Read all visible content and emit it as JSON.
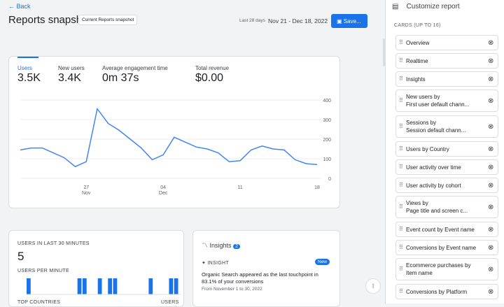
{
  "header": {
    "back": "Back",
    "title": "Reports snapshot",
    "chip": "Current Reports snapshot",
    "range_label": "Last 28 days",
    "range": "Nov 21 - Dec 18, 2022",
    "save": "Save..."
  },
  "overview": {
    "metrics": [
      {
        "label": "Users",
        "value": "3.5K"
      },
      {
        "label": "New users",
        "value": "3.4K"
      },
      {
        "label": "Average engagement time",
        "value": "0m 37s"
      },
      {
        "label": "Total revenue",
        "value": "$0.00"
      }
    ],
    "chart": {
      "type": "line",
      "color": "#4285f4",
      "ylim": [
        0,
        400
      ],
      "yticks": [
        0,
        100,
        200,
        300,
        400
      ],
      "categories": [
        null,
        null,
        null,
        null,
        null,
        null,
        {
          "day": "27",
          "month": "Nov"
        },
        null,
        null,
        null,
        null,
        null,
        null,
        {
          "day": "04",
          "month": "Dec"
        },
        null,
        null,
        null,
        null,
        null,
        null,
        {
          "day": "11"
        },
        null,
        null,
        null,
        null,
        null,
        null,
        {
          "day": "18"
        }
      ],
      "values": [
        145,
        155,
        155,
        130,
        105,
        60,
        85,
        355,
        280,
        245,
        200,
        155,
        95,
        120,
        210,
        185,
        160,
        150,
        130,
        85,
        90,
        145,
        165,
        150,
        145,
        95,
        75,
        70
      ]
    }
  },
  "realtime": {
    "title": "USERS IN LAST 30 MINUTES",
    "value": "5",
    "per_minute": "USERS PER MINUTE",
    "bars": [
      1,
      0,
      0,
      0,
      0,
      0,
      0,
      0,
      0,
      0,
      1,
      1,
      0,
      0,
      1,
      0,
      1,
      1,
      0,
      0,
      0,
      0,
      0,
      0,
      1,
      0,
      0,
      0,
      1,
      1
    ],
    "countries": "TOP COUNTRIES",
    "users": "USERS"
  },
  "insights": {
    "title": "Insights",
    "count": "2",
    "kind": "INSIGHT",
    "badge": "New",
    "text": "Organic Search appeared as the last touchpoint in 83.1% of your conversions",
    "date": "From November 1 to 30, 2022"
  },
  "panel": {
    "title": "Customize report",
    "section": "CARDS (UP TO 16)",
    "cards": [
      [
        "Overview"
      ],
      [
        "Realtime"
      ],
      [
        "Insights"
      ],
      [
        "New users by",
        "First user default chann..."
      ],
      [
        "Sessions by",
        "Session default chann..."
      ],
      [
        "Users by Country"
      ],
      [
        "User activity over time"
      ],
      [
        "User activity by cohort"
      ],
      [
        "Views by",
        "Page title and screen c..."
      ],
      [
        "Event count by Event name"
      ],
      [
        "Conversions by Event name"
      ],
      [
        "Ecommerce purchases by",
        "Item name"
      ],
      [
        "Conversions by Platform"
      ]
    ]
  }
}
